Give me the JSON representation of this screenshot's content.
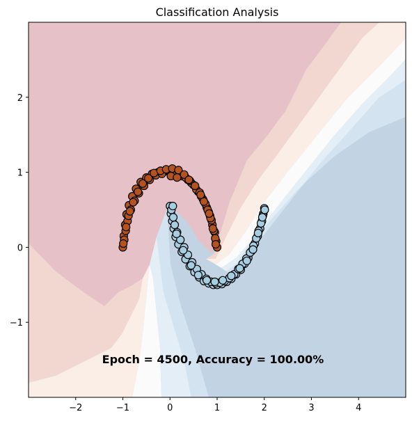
{
  "chart_data": {
    "type": "scatter",
    "title": "Classification Analysis",
    "xlabel": "",
    "ylabel": "",
    "xlim": [
      -3,
      5
    ],
    "ylim": [
      -2,
      3
    ],
    "x_ticks": [
      -2,
      -1,
      0,
      1,
      2,
      3,
      4
    ],
    "x_tick_labels": [
      "−2",
      "−1",
      "0",
      "1",
      "2",
      "3",
      "4"
    ],
    "y_ticks": [
      -1,
      0,
      1,
      2
    ],
    "y_tick_labels": [
      "−1",
      "0",
      "1",
      "2"
    ],
    "grid": false,
    "annotation": "Epoch = 4500, Accuracy = 100.00%",
    "background": "decision-boundary contour (red = class 0, blue = class 1)",
    "series": [
      {
        "class": 0,
        "color": "#b5531f",
        "x": [
          -1.0,
          -0.98,
          -0.95,
          -0.92,
          -0.87,
          -0.8,
          -0.72,
          -0.62,
          -0.5,
          -0.38,
          -0.25,
          -0.12,
          0.0,
          0.12,
          0.25,
          0.38,
          0.5,
          0.6,
          0.7,
          0.78,
          0.85,
          0.9,
          0.95,
          0.98,
          1.0,
          -0.97,
          -0.9,
          -0.83,
          -0.75,
          -0.66,
          -0.55,
          -0.43,
          -0.3,
          -0.17,
          -0.05,
          0.08,
          0.2,
          0.33,
          0.45,
          0.56,
          0.66,
          0.75,
          0.82,
          0.88,
          0.93,
          0.96,
          -0.94,
          -0.88,
          -0.78,
          -0.68,
          -0.58,
          -0.46,
          -0.34,
          -0.2,
          -0.08,
          0.05,
          0.18,
          0.3,
          0.42,
          0.53,
          0.63,
          0.72,
          0.8,
          0.86,
          0.91,
          -0.99,
          -0.93,
          -0.85,
          0.02,
          0.15,
          0.4,
          0.65,
          0.83,
          0.97
        ],
        "y": [
          0.0,
          0.15,
          0.3,
          0.44,
          0.56,
          0.68,
          0.78,
          0.87,
          0.93,
          0.98,
          1.0,
          1.01,
          1.0,
          0.99,
          0.95,
          0.9,
          0.83,
          0.74,
          0.64,
          0.53,
          0.42,
          0.3,
          0.2,
          0.08,
          0.0,
          0.1,
          0.35,
          0.5,
          0.62,
          0.72,
          0.82,
          0.9,
          0.96,
          0.98,
          1.03,
          1.02,
          0.98,
          0.93,
          0.86,
          0.77,
          0.68,
          0.58,
          0.47,
          0.36,
          0.22,
          0.12,
          0.22,
          0.42,
          0.6,
          0.74,
          0.85,
          0.92,
          0.99,
          1.02,
          1.04,
          1.05,
          1.03,
          0.97,
          0.89,
          0.82,
          0.73,
          0.61,
          0.5,
          0.39,
          0.25,
          0.05,
          0.27,
          0.48,
          0.95,
          0.93,
          0.9,
          0.7,
          0.45,
          0.04
        ],
        "name": ""
      },
      {
        "class": 1,
        "color": "#a6cee3",
        "x": [
          0.0,
          0.02,
          0.05,
          0.08,
          0.12,
          0.18,
          0.25,
          0.33,
          0.42,
          0.52,
          0.62,
          0.72,
          0.82,
          0.92,
          1.0,
          1.1,
          1.2,
          1.3,
          1.4,
          1.5,
          1.58,
          1.66,
          1.73,
          1.8,
          1.86,
          1.91,
          1.95,
          1.98,
          2.0,
          0.03,
          0.07,
          0.1,
          0.15,
          0.22,
          0.3,
          0.38,
          0.47,
          0.57,
          0.67,
          0.77,
          0.87,
          0.97,
          1.06,
          1.16,
          1.26,
          1.36,
          1.45,
          1.54,
          1.62,
          1.7,
          1.77,
          1.83,
          1.88,
          1.93,
          1.97,
          2.01,
          0.06,
          0.14,
          0.28,
          0.45,
          0.6,
          0.78,
          0.95,
          1.12,
          1.3,
          1.48,
          1.63,
          1.76,
          1.87,
          1.96
        ],
        "y": [
          0.55,
          0.45,
          0.35,
          0.25,
          0.14,
          0.04,
          -0.06,
          -0.16,
          -0.25,
          -0.33,
          -0.4,
          -0.45,
          -0.48,
          -0.5,
          -0.5,
          -0.49,
          -0.46,
          -0.42,
          -0.36,
          -0.3,
          -0.22,
          -0.14,
          -0.05,
          0.05,
          0.15,
          0.25,
          0.35,
          0.45,
          0.52,
          0.5,
          0.4,
          0.3,
          0.2,
          0.1,
          0.0,
          -0.1,
          -0.2,
          -0.29,
          -0.36,
          -0.42,
          -0.46,
          -0.48,
          -0.47,
          -0.45,
          -0.41,
          -0.36,
          -0.29,
          -0.22,
          -0.15,
          -0.07,
          0.02,
          0.12,
          0.22,
          0.32,
          0.42,
          0.5,
          0.55,
          0.18,
          -0.04,
          -0.24,
          -0.37,
          -0.44,
          -0.46,
          -0.44,
          -0.38,
          -0.28,
          -0.18,
          -0.03,
          0.19,
          0.4
        ],
        "name": ""
      }
    ]
  }
}
